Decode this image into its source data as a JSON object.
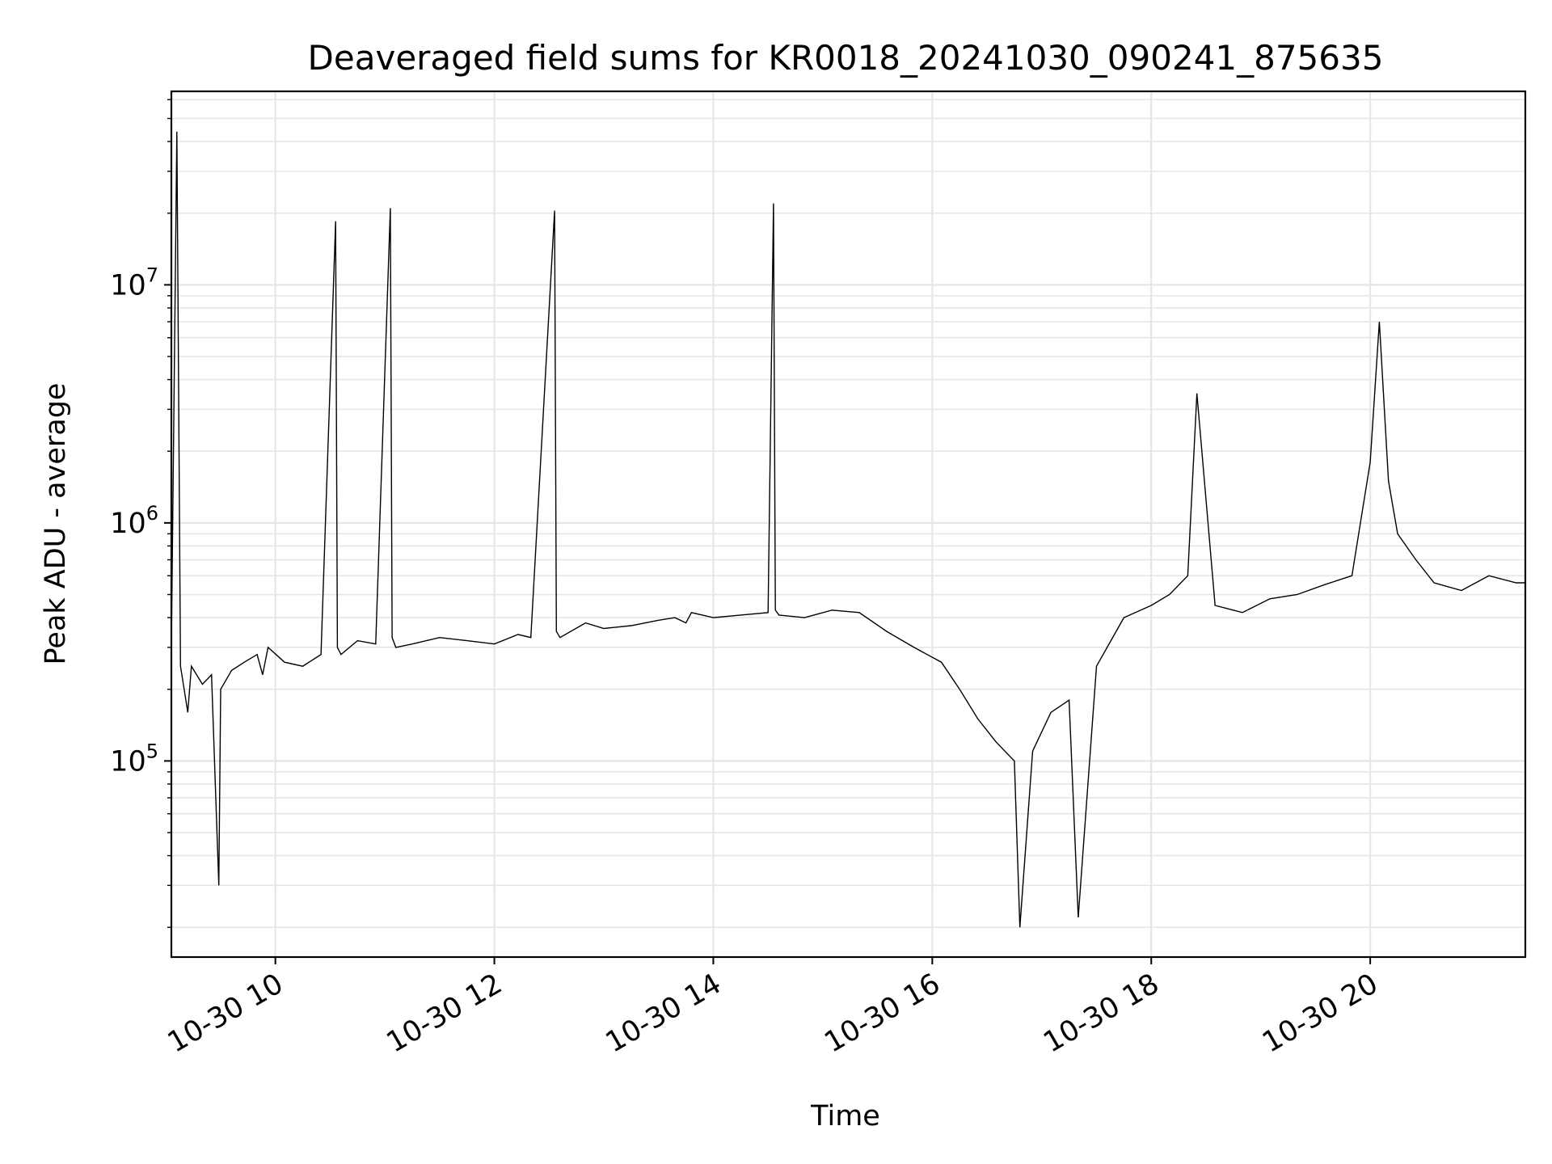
{
  "chart_data": {
    "type": "line",
    "title": "Deaveraged field sums for KR0018_20241030_090241_875635",
    "xlabel": "Time",
    "ylabel": "Peak ADU - average",
    "x_axis": {
      "kind": "datetime",
      "range": [
        "2024-10-30 09:03",
        "2024-10-30 21:25"
      ],
      "tick_labels": [
        "10-30 10",
        "10-30 12",
        "10-30 14",
        "10-30 16",
        "10-30 18",
        "10-30 20"
      ],
      "tick_hours": [
        10,
        12,
        14,
        16,
        18,
        20
      ],
      "tick_rotation_deg": 30
    },
    "y_axis": {
      "scale": "log",
      "range": [
        15000,
        65000000
      ],
      "major_ticks": [
        {
          "base": "10",
          "exp": "5",
          "value": 100000
        },
        {
          "base": "10",
          "exp": "6",
          "value": 1000000
        },
        {
          "base": "10",
          "exp": "7",
          "value": 10000000
        }
      ],
      "minor_ticks": true
    },
    "grid": true,
    "line_color": "#000000",
    "grid_color": "#e6e6e6",
    "series": [
      {
        "x": [
          "2024-10-30 09:03",
          "2024-10-30 09:06",
          "2024-10-30 09:08",
          "2024-10-30 09:10",
          "2024-10-30 09:12",
          "2024-10-30 09:14",
          "2024-10-30 09:20",
          "2024-10-30 09:25",
          "2024-10-30 09:29",
          "2024-10-30 09:30",
          "2024-10-30 09:36",
          "2024-10-30 09:43",
          "2024-10-30 09:50",
          "2024-10-30 09:53",
          "2024-10-30 09:56",
          "2024-10-30 10:05",
          "2024-10-30 10:15",
          "2024-10-30 10:25",
          "2024-10-30 10:33",
          "2024-10-30 10:34",
          "2024-10-30 10:36",
          "2024-10-30 10:45",
          "2024-10-30 10:55",
          "2024-10-30 11:03",
          "2024-10-30 11:04",
          "2024-10-30 11:06",
          "2024-10-30 11:15",
          "2024-10-30 11:30",
          "2024-10-30 11:45",
          "2024-10-30 12:00",
          "2024-10-30 12:13",
          "2024-10-30 12:20",
          "2024-10-30 12:33",
          "2024-10-30 12:34",
          "2024-10-30 12:36",
          "2024-10-30 12:50",
          "2024-10-30 13:00",
          "2024-10-30 13:15",
          "2024-10-30 13:30",
          "2024-10-30 13:39",
          "2024-10-30 13:45",
          "2024-10-30 13:48",
          "2024-10-30 14:00",
          "2024-10-30 14:15",
          "2024-10-30 14:30",
          "2024-10-30 14:33",
          "2024-10-30 14:34",
          "2024-10-30 14:36",
          "2024-10-30 14:50",
          "2024-10-30 15:05",
          "2024-10-30 15:20",
          "2024-10-30 15:35",
          "2024-10-30 15:50",
          "2024-10-30 16:05",
          "2024-10-30 16:15",
          "2024-10-30 16:25",
          "2024-10-30 16:35",
          "2024-10-30 16:45",
          "2024-10-30 16:48",
          "2024-10-30 16:55",
          "2024-10-30 17:05",
          "2024-10-30 17:15",
          "2024-10-30 17:20",
          "2024-10-30 17:30",
          "2024-10-30 17:45",
          "2024-10-30 18:00",
          "2024-10-30 18:10",
          "2024-10-30 18:20",
          "2024-10-30 18:25",
          "2024-10-30 18:35",
          "2024-10-30 18:50",
          "2024-10-30 19:05",
          "2024-10-30 19:20",
          "2024-10-30 19:35",
          "2024-10-30 19:50",
          "2024-10-30 20:00",
          "2024-10-30 20:05",
          "2024-10-30 20:10",
          "2024-10-30 20:15",
          "2024-10-30 20:25",
          "2024-10-30 20:35",
          "2024-10-30 20:50",
          "2024-10-30 21:05",
          "2024-10-30 21:20",
          "2024-10-30 21:25"
        ],
        "y": [
          300000,
          44000000,
          250000,
          200000,
          160000,
          250000,
          210000,
          230000,
          30000,
          200000,
          240000,
          260000,
          280000,
          230000,
          300000,
          260000,
          250000,
          280000,
          18500000,
          300000,
          280000,
          320000,
          310000,
          21000000,
          330000,
          300000,
          310000,
          330000,
          320000,
          310000,
          340000,
          330000,
          20500000,
          350000,
          330000,
          380000,
          360000,
          370000,
          390000,
          400000,
          380000,
          420000,
          400000,
          410000,
          420000,
          22000000,
          430000,
          410000,
          400000,
          430000,
          420000,
          350000,
          300000,
          260000,
          200000,
          150000,
          120000,
          100000,
          20000,
          110000,
          160000,
          180000,
          22000,
          250000,
          400000,
          450000,
          500000,
          600000,
          3500000,
          450000,
          420000,
          480000,
          500000,
          550000,
          600000,
          1800000,
          7000000,
          1500000,
          900000,
          700000,
          560000,
          520000,
          600000,
          560000,
          560000
        ]
      }
    ]
  }
}
